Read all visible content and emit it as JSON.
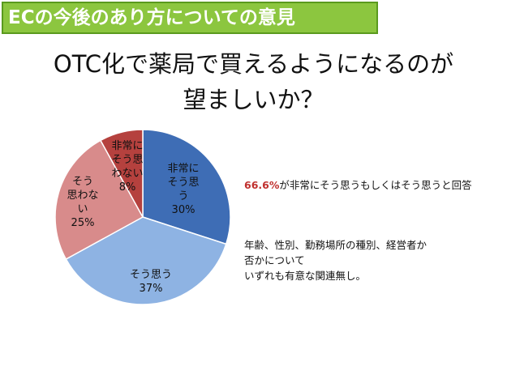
{
  "banner": {
    "text": "ECの今後のあり方についての意見"
  },
  "title": {
    "line1": "OTC化で薬局で買えるようになるのが",
    "line2": "望ましいか？"
  },
  "chart_data": {
    "type": "pie",
    "slices": [
      {
        "label": [
          "非常に",
          "そう思",
          "う"
        ],
        "value": 30,
        "pct_label": "30%",
        "color": "#3e6db5"
      },
      {
        "label": [
          "そう思う"
        ],
        "value": 37,
        "pct_label": "37%",
        "color": "#8eb3e3"
      },
      {
        "label": [
          "そう",
          "思わな",
          "い"
        ],
        "value": 25,
        "pct_label": "25%",
        "color": "#d88b8b"
      },
      {
        "label": [
          "非常に",
          "そう思",
          "わない"
        ],
        "value": 8,
        "pct_label": "8%",
        "color": "#b5413e"
      }
    ]
  },
  "notes": {
    "summary_pct": "66.6%",
    "summary_text": "が非常にそう思うもしくはそう思うと回答",
    "detail_lines": [
      "年齢、性別、勤務場所の種別、経営者か",
      "否かについて",
      "いずれも有意な関連無し。"
    ]
  }
}
